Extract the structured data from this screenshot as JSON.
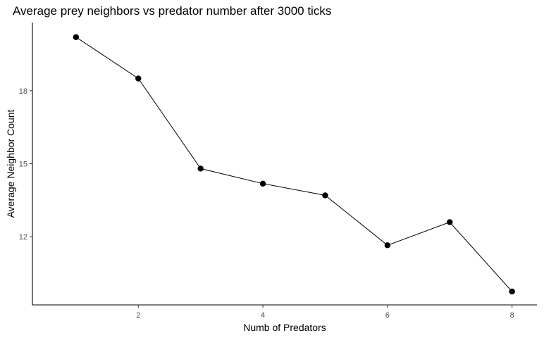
{
  "chart_data": {
    "type": "line",
    "title": "Average prey neighbors vs predator number after 3000 ticks",
    "xlabel": "Numb of Predators",
    "ylabel": "Average Neighbor Count",
    "x": [
      1,
      2,
      3,
      4,
      5,
      6,
      7,
      8
    ],
    "y": [
      20.2,
      18.5,
      14.8,
      14.18,
      13.7,
      11.65,
      12.6,
      9.75
    ],
    "xticks": [
      2,
      4,
      6,
      8
    ],
    "yticks": [
      12,
      15,
      18
    ],
    "xlim": [
      0.3,
      8.4
    ],
    "ylim": [
      9.2,
      20.8
    ],
    "grid": false,
    "legend": "none",
    "colors": {
      "line": "#000000",
      "point": "#000000",
      "axis": "#000000",
      "tick_label": "#4d4d4d"
    }
  }
}
